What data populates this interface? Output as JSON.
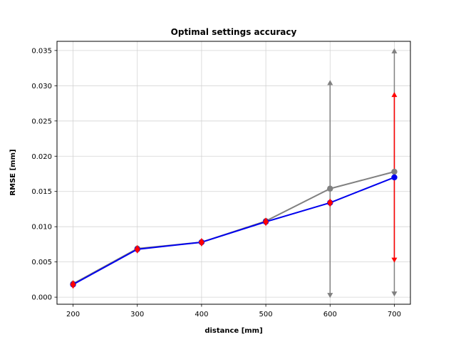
{
  "chart_data": {
    "type": "line",
    "title": "Optimal settings accuracy",
    "xlabel": "distance [mm]",
    "ylabel": "RMSE [mm]",
    "xlim": [
      175,
      725
    ],
    "ylim": [
      -0.001,
      0.0363
    ],
    "xticks": [
      200,
      300,
      400,
      500,
      600,
      700
    ],
    "yticks": [
      0.0,
      0.005,
      0.01,
      0.015,
      0.02,
      0.025,
      0.03,
      0.035
    ],
    "xtick_labels": [
      "200",
      "300",
      "400",
      "500",
      "600",
      "700"
    ],
    "ytick_labels": [
      "0.000",
      "0.005",
      "0.010",
      "0.015",
      "0.020",
      "0.025",
      "0.030",
      "0.035"
    ],
    "grid": true,
    "legend": false,
    "x": [
      200,
      300,
      400,
      500,
      600,
      700
    ],
    "series": [
      {
        "color": "#808080",
        "values": [
          0.0019,
          0.0069,
          0.0078,
          0.0108,
          0.0154,
          0.0178
        ]
      },
      {
        "color": "#0000ee",
        "values": [
          0.0018,
          0.0068,
          0.0078,
          0.0107,
          0.0134,
          0.017
        ]
      }
    ],
    "red_markers": [
      {
        "x": 200,
        "y": 0.0018
      },
      {
        "x": 300,
        "y": 0.0068
      },
      {
        "x": 400,
        "y": 0.0078
      },
      {
        "x": 500,
        "y": 0.0107
      },
      {
        "x": 600,
        "y": 0.0134
      }
    ],
    "error_bars": [
      {
        "x": 600,
        "low": 0.0003,
        "high": 0.0304,
        "color": "#808080"
      },
      {
        "x": 700,
        "low": 0.0005,
        "high": 0.0349,
        "color": "#808080"
      },
      {
        "x": 700,
        "low": 0.0053,
        "high": 0.0287,
        "color": "#ff0000"
      }
    ]
  }
}
